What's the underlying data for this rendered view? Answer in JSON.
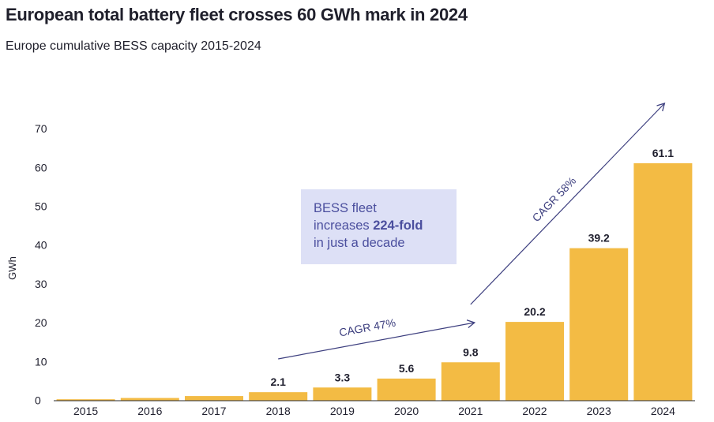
{
  "header": {
    "title": "European total battery fleet crosses 60 GWh mark in 2024",
    "subtitle": "Europe cumulative BESS capacity 2015-2024"
  },
  "callout": {
    "line1": "BESS fleet",
    "line2_prefix": "increases ",
    "line2_bold": "224-fold",
    "line3": "in just a decade"
  },
  "chart_data": {
    "type": "bar",
    "ylabel": "GWh",
    "xlabel": "",
    "ylim": [
      0,
      70
    ],
    "yticks": [
      0,
      10,
      20,
      30,
      40,
      50,
      60,
      70
    ],
    "grid": false,
    "categories": [
      "2015",
      "2016",
      "2017",
      "2018",
      "2019",
      "2020",
      "2021",
      "2022",
      "2023",
      "2024"
    ],
    "values": [
      0.27,
      0.6,
      1.1,
      2.1,
      3.3,
      5.6,
      9.8,
      20.2,
      39.2,
      61.1
    ],
    "data_labels": [
      null,
      null,
      null,
      "2.1",
      "3.3",
      "5.6",
      "9.8",
      "20.2",
      "39.2",
      "61.1"
    ],
    "annotations": [
      {
        "label": "CAGR 47%",
        "from_year": "2018",
        "to_year": "2021"
      },
      {
        "label": "CAGR 58%",
        "from_year": "2021",
        "to_year": "2024"
      }
    ],
    "colors": {
      "bar": "#f3bb44",
      "text": "#1f1f2e",
      "annotation": "#3d3f7f"
    }
  }
}
